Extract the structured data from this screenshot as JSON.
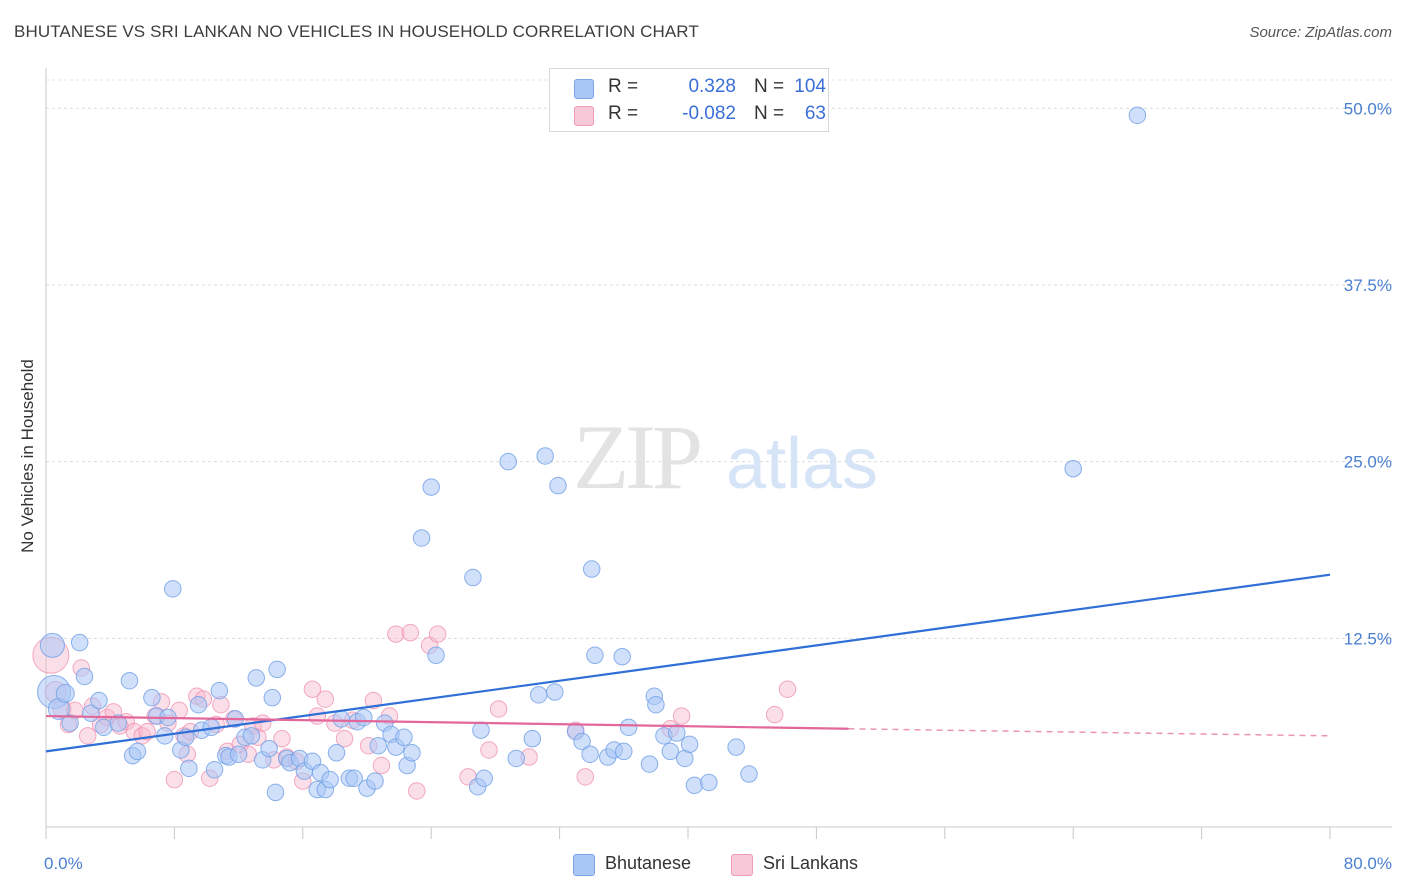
{
  "title": "BHUTANESE VS SRI LANKAN NO VEHICLES IN HOUSEHOLD CORRELATION CHART",
  "source": "Source: ZipAtlas.com",
  "watermark": {
    "zip": "ZIP",
    "atlas": "atlas"
  },
  "legend": {
    "rows": [
      {
        "r_label": "R =",
        "r_value": "0.328",
        "n_label": "N =",
        "n_value": "104",
        "color": "#a9c7f5"
      },
      {
        "r_label": "R =",
        "r_value": "-0.082",
        "n_label": "N =",
        "n_value": "63",
        "color": "#f7b8cd"
      }
    ]
  },
  "bottom_legend": [
    {
      "label": "Bhutanese",
      "color": "#a9c7f5"
    },
    {
      "label": "Sri Lankans",
      "color": "#f7b8cd"
    }
  ],
  "chart_data": {
    "type": "scatter",
    "title": "BHUTANESE VS SRI LANKAN NO VEHICLES IN HOUSEHOLD CORRELATION CHART",
    "xlabel": "",
    "ylabel": "No Vehicles in Household",
    "xlim": [
      0,
      80
    ],
    "ylim": [
      0,
      52
    ],
    "x_tick_labels": [
      "0.0%",
      "80.0%"
    ],
    "y_ticks": [
      12.5,
      25.0,
      37.5,
      50.0
    ],
    "y_tick_labels": [
      "12.5%",
      "25.0%",
      "37.5%",
      "50.0%"
    ],
    "grid": true,
    "legend_position": "top-center",
    "colors": {
      "blue_point": "#a9c7f5",
      "blue_edge": "#6f9fe6",
      "blue_line": "#2f6fd6",
      "pink_point": "#f7b8cd",
      "pink_edge": "#ee88ab",
      "pink_line": "#e2679a"
    },
    "series": [
      {
        "name": "Bhutanese",
        "trend": {
          "x": [
            0,
            80
          ],
          "y": [
            4.5,
            17.0
          ]
        },
        "points": [
          [
            0.5,
            8.7,
            22
          ],
          [
            0.4,
            12.0,
            16
          ],
          [
            0.8,
            7.5,
            14
          ],
          [
            1.2,
            8.6,
            12
          ],
          [
            1.5,
            6.5,
            11
          ],
          [
            2.1,
            12.2,
            11
          ],
          [
            2.4,
            9.8,
            11
          ],
          [
            2.8,
            7.2,
            11
          ],
          [
            3.3,
            8.1,
            11
          ],
          [
            3.6,
            6.2,
            11
          ],
          [
            4.5,
            6.5,
            11
          ],
          [
            5.2,
            9.5,
            11
          ],
          [
            5.4,
            4.2,
            11
          ],
          [
            5.7,
            4.5,
            11
          ],
          [
            6.6,
            8.3,
            11
          ],
          [
            6.9,
            7.0,
            11
          ],
          [
            7.4,
            5.6,
            11
          ],
          [
            7.6,
            6.9,
            11
          ],
          [
            7.9,
            16.0,
            11
          ],
          [
            8.4,
            4.6,
            11
          ],
          [
            8.7,
            5.5,
            11
          ],
          [
            8.9,
            3.3,
            11
          ],
          [
            9.5,
            7.8,
            11
          ],
          [
            9.7,
            6.0,
            11
          ],
          [
            10.3,
            6.2,
            11
          ],
          [
            10.5,
            3.2,
            11
          ],
          [
            10.8,
            8.8,
            11
          ],
          [
            11.2,
            4.2,
            11
          ],
          [
            11.4,
            4.1,
            11
          ],
          [
            11.8,
            6.8,
            11
          ],
          [
            12.0,
            4.3,
            11
          ],
          [
            12.4,
            5.5,
            11
          ],
          [
            12.8,
            5.6,
            11
          ],
          [
            13.1,
            9.7,
            11
          ],
          [
            13.5,
            3.9,
            11
          ],
          [
            13.9,
            4.7,
            11
          ],
          [
            14.1,
            8.3,
            11
          ],
          [
            14.4,
            10.3,
            11
          ],
          [
            14.3,
            1.6,
            11
          ],
          [
            15.0,
            4.0,
            11
          ],
          [
            15.2,
            3.7,
            11
          ],
          [
            15.8,
            4.0,
            11
          ],
          [
            16.1,
            3.1,
            11
          ],
          [
            16.6,
            3.8,
            11
          ],
          [
            16.9,
            1.8,
            11
          ],
          [
            17.1,
            3.0,
            11
          ],
          [
            17.4,
            1.8,
            11
          ],
          [
            17.7,
            2.5,
            11
          ],
          [
            18.1,
            4.4,
            11
          ],
          [
            18.4,
            6.8,
            11
          ],
          [
            18.9,
            2.6,
            11
          ],
          [
            19.2,
            2.6,
            11
          ],
          [
            19.4,
            6.6,
            11
          ],
          [
            19.8,
            6.9,
            11
          ],
          [
            20.0,
            1.9,
            11
          ],
          [
            20.5,
            2.4,
            11
          ],
          [
            20.7,
            4.9,
            11
          ],
          [
            21.1,
            6.5,
            11
          ],
          [
            21.5,
            5.7,
            11
          ],
          [
            21.8,
            4.8,
            11
          ],
          [
            22.3,
            5.5,
            11
          ],
          [
            22.5,
            3.5,
            11
          ],
          [
            22.8,
            4.4,
            11
          ],
          [
            23.4,
            19.6,
            11
          ],
          [
            24.0,
            23.2,
            11
          ],
          [
            24.3,
            11.3,
            11
          ],
          [
            26.6,
            16.8,
            11
          ],
          [
            26.9,
            2.0,
            11
          ],
          [
            27.1,
            6.0,
            11
          ],
          [
            27.3,
            2.6,
            11
          ],
          [
            28.8,
            25.0,
            11
          ],
          [
            29.3,
            4.0,
            11
          ],
          [
            30.3,
            5.4,
            11
          ],
          [
            30.7,
            8.5,
            11
          ],
          [
            31.1,
            25.4,
            11
          ],
          [
            31.7,
            8.7,
            11
          ],
          [
            31.9,
            23.3,
            11
          ],
          [
            33.0,
            5.9,
            11
          ],
          [
            33.4,
            5.2,
            11
          ],
          [
            33.9,
            4.3,
            11
          ],
          [
            34.0,
            17.4,
            11
          ],
          [
            34.2,
            11.3,
            11
          ],
          [
            35.0,
            4.1,
            11
          ],
          [
            35.4,
            4.6,
            11
          ],
          [
            35.9,
            11.2,
            11
          ],
          [
            36.0,
            4.5,
            11
          ],
          [
            36.3,
            6.2,
            11
          ],
          [
            37.6,
            3.6,
            11
          ],
          [
            37.9,
            8.4,
            11
          ],
          [
            38.0,
            7.8,
            11
          ],
          [
            38.5,
            5.6,
            11
          ],
          [
            38.9,
            4.5,
            11
          ],
          [
            39.3,
            5.8,
            11
          ],
          [
            39.8,
            4.0,
            11
          ],
          [
            40.1,
            5.0,
            11
          ],
          [
            40.4,
            2.1,
            11
          ],
          [
            41.3,
            2.3,
            11
          ],
          [
            43.0,
            4.8,
            11
          ],
          [
            43.8,
            2.9,
            11
          ],
          [
            64.0,
            24.5,
            11
          ],
          [
            68.0,
            49.5,
            11
          ]
        ]
      },
      {
        "name": "Sri Lankans",
        "trend": {
          "x": [
            0,
            50
          ],
          "y": [
            7.0,
            6.1
          ],
          "dashed_x": [
            50,
            80
          ],
          "dashed_y": [
            6.1,
            5.6
          ]
        },
        "points": [
          [
            0.3,
            11.3,
            24
          ],
          [
            0.6,
            8.7,
            14
          ],
          [
            1.0,
            7.5,
            12
          ],
          [
            1.4,
            6.4,
            11
          ],
          [
            1.8,
            7.4,
            11
          ],
          [
            2.2,
            10.4,
            11
          ],
          [
            2.6,
            5.6,
            11
          ],
          [
            2.9,
            7.7,
            11
          ],
          [
            3.4,
            6.4,
            11
          ],
          [
            3.8,
            6.9,
            11
          ],
          [
            4.2,
            7.3,
            11
          ],
          [
            4.6,
            6.3,
            11
          ],
          [
            5.0,
            6.6,
            11
          ],
          [
            5.5,
            5.9,
            11
          ],
          [
            6.0,
            5.6,
            11
          ],
          [
            6.3,
            5.9,
            11
          ],
          [
            6.8,
            7.0,
            11
          ],
          [
            7.2,
            8.0,
            11
          ],
          [
            7.6,
            6.5,
            11
          ],
          [
            8.0,
            2.5,
            11
          ],
          [
            8.3,
            7.4,
            11
          ],
          [
            8.6,
            5.6,
            11
          ],
          [
            8.8,
            4.3,
            11
          ],
          [
            9.0,
            5.9,
            11
          ],
          [
            9.4,
            8.4,
            11
          ],
          [
            9.8,
            8.2,
            11
          ],
          [
            10.2,
            2.6,
            11
          ],
          [
            10.6,
            6.4,
            11
          ],
          [
            10.9,
            7.8,
            11
          ],
          [
            11.3,
            4.5,
            11
          ],
          [
            11.7,
            6.8,
            11
          ],
          [
            12.1,
            5.0,
            11
          ],
          [
            12.6,
            4.3,
            11
          ],
          [
            12.9,
            6.3,
            11
          ],
          [
            13.2,
            5.5,
            11
          ],
          [
            13.5,
            6.5,
            11
          ],
          [
            14.2,
            3.9,
            11
          ],
          [
            14.7,
            5.4,
            11
          ],
          [
            15.0,
            4.1,
            11
          ],
          [
            15.6,
            3.8,
            11
          ],
          [
            16.0,
            2.4,
            11
          ],
          [
            16.6,
            8.9,
            11
          ],
          [
            16.9,
            7.0,
            11
          ],
          [
            17.4,
            8.2,
            11
          ],
          [
            18.0,
            6.5,
            11
          ],
          [
            18.6,
            5.4,
            11
          ],
          [
            19.1,
            6.7,
            11
          ],
          [
            20.1,
            4.9,
            11
          ],
          [
            20.4,
            8.1,
            11
          ],
          [
            20.9,
            3.5,
            11
          ],
          [
            21.4,
            7.0,
            11
          ],
          [
            21.8,
            12.8,
            11
          ],
          [
            22.7,
            12.9,
            11
          ],
          [
            23.1,
            1.7,
            11
          ],
          [
            23.9,
            12.0,
            11
          ],
          [
            24.4,
            12.8,
            11
          ],
          [
            26.3,
            2.7,
            11
          ],
          [
            27.6,
            4.6,
            11
          ],
          [
            28.2,
            7.5,
            11
          ],
          [
            30.1,
            4.1,
            11
          ],
          [
            33.0,
            6.0,
            11
          ],
          [
            33.6,
            2.7,
            11
          ],
          [
            38.9,
            6.1,
            11
          ],
          [
            39.6,
            7.0,
            11
          ],
          [
            45.4,
            7.1,
            11
          ],
          [
            46.2,
            8.9,
            11
          ]
        ]
      }
    ]
  }
}
